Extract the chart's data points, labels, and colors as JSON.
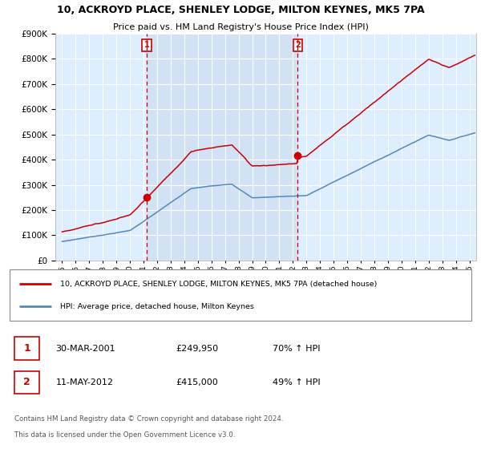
{
  "title": "10, ACKROYD PLACE, SHENLEY LODGE, MILTON KEYNES, MK5 7PA",
  "subtitle": "Price paid vs. HM Land Registry's House Price Index (HPI)",
  "legend_label_red": "10, ACKROYD PLACE, SHENLEY LODGE, MILTON KEYNES, MK5 7PA (detached house)",
  "legend_label_blue": "HPI: Average price, detached house, Milton Keynes",
  "footer1": "Contains HM Land Registry data © Crown copyright and database right 2024.",
  "footer2": "This data is licensed under the Open Government Licence v3.0.",
  "point1_label": "1",
  "point1_date": "30-MAR-2001",
  "point1_price": "£249,950",
  "point1_hpi": "70% ↑ HPI",
  "point1_x": 2001.24,
  "point1_y": 249950,
  "point2_label": "2",
  "point2_date": "11-MAY-2012",
  "point2_price": "£415,000",
  "point2_hpi": "49% ↑ HPI",
  "point2_x": 2012.36,
  "point2_y": 415000,
  "red_color": "#cc0000",
  "blue_color": "#5588bb",
  "shade_color": "#ccddf0",
  "vline_color": "#cc0000",
  "marker_box_color": "#cc0000",
  "background_plot": "#ddeeff",
  "ylim": [
    0,
    900000
  ],
  "xlim_start": 1994.5,
  "xlim_end": 2025.5,
  "yticks": [
    0,
    100000,
    200000,
    300000,
    400000,
    500000,
    600000,
    700000,
    800000,
    900000
  ],
  "xtick_start": 1995,
  "xtick_end": 2025
}
